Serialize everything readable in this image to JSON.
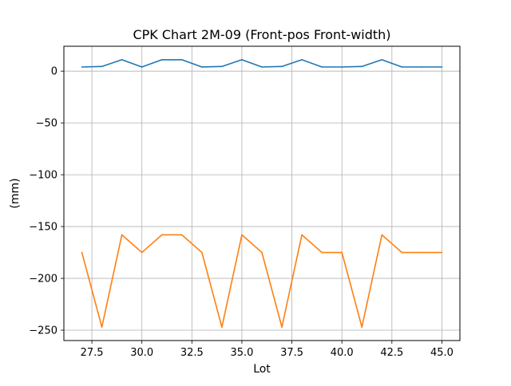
{
  "chart_data": {
    "type": "line",
    "title": "CPK Chart 2M-09 (Front-pos Front-width)",
    "xlabel": "Lot",
    "ylabel": "(mm)",
    "xlim": [
      26.1,
      45.9
    ],
    "ylim": [
      -260,
      24
    ],
    "x_ticks": [
      27.5,
      30.0,
      32.5,
      35.0,
      37.5,
      40.0,
      42.5,
      45.0
    ],
    "x_tick_labels": [
      "27.5",
      "30.0",
      "32.5",
      "35.0",
      "37.5",
      "40.0",
      "42.5",
      "45.0"
    ],
    "y_ticks": [
      0,
      -50,
      -100,
      -150,
      -200,
      -250
    ],
    "y_tick_labels": [
      "0",
      "−50",
      "−100",
      "−150",
      "−200",
      "−250"
    ],
    "grid": true,
    "x": [
      27,
      28,
      29,
      30,
      31,
      32,
      33,
      34,
      35,
      36,
      37,
      38,
      39,
      40,
      41,
      42,
      43,
      44,
      45
    ],
    "series": [
      {
        "color": "#1f77b4",
        "values": [
          4,
          4.5,
          11,
          4,
          11,
          11,
          4,
          4.5,
          11,
          4,
          4.5,
          11,
          4,
          4,
          4.5,
          11,
          4,
          4,
          4
        ]
      },
      {
        "color": "#ff7f0e",
        "values": [
          -175,
          -247,
          -158,
          -175,
          -158,
          -158,
          -175,
          -247,
          -158,
          -175,
          -247,
          -158,
          -175,
          -175,
          -247,
          -158,
          -175,
          -175,
          -175
        ]
      }
    ]
  }
}
